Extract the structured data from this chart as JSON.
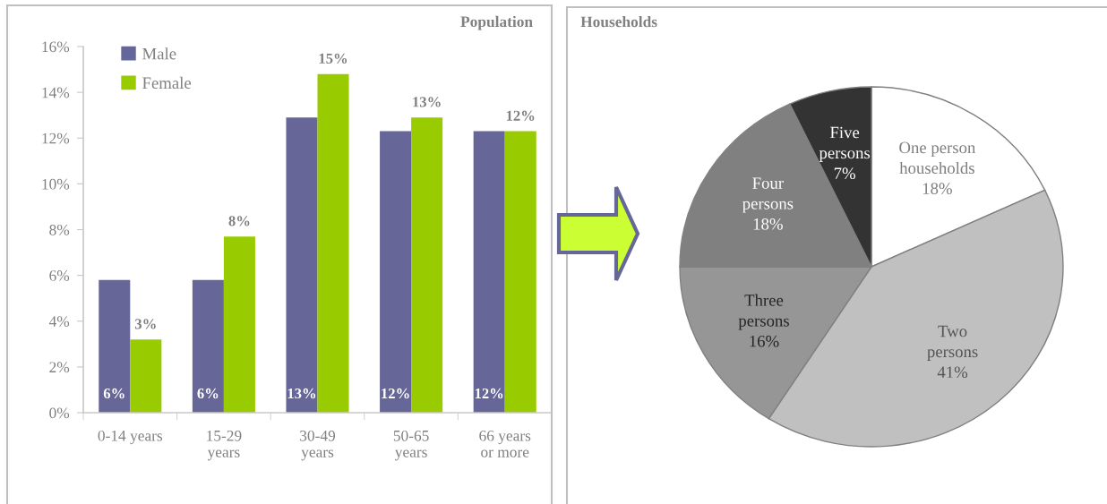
{
  "chart_data": [
    {
      "type": "bar",
      "title": "Population",
      "categories": [
        "0-14 years",
        "15-29\nyears",
        "30-49\nyears",
        "50-65\nyears",
        "66 years\nor more"
      ],
      "series": [
        {
          "name": "Male",
          "color": "#666699",
          "values": [
            5.8,
            5.8,
            12.9,
            12.3,
            12.3
          ],
          "value_labels": [
            "6%",
            "6%",
            "13%",
            "12%",
            "12%"
          ]
        },
        {
          "name": "Female",
          "color": "#99cc00",
          "values": [
            3.2,
            7.7,
            14.8,
            12.9,
            12.3
          ],
          "value_labels": [
            "3%",
            "8%",
            "15%",
            "13%",
            "12%"
          ]
        }
      ],
      "ylim": [
        0,
        16
      ],
      "yticks": [
        {
          "value": 0,
          "label": "0%"
        },
        {
          "value": 2,
          "label": "2%"
        },
        {
          "value": 4,
          "label": "4%"
        },
        {
          "value": 6,
          "label": "6%"
        },
        {
          "value": 8,
          "label": "8%"
        },
        {
          "value": 10,
          "label": "10%"
        },
        {
          "value": 12,
          "label": "12%"
        },
        {
          "value": 14,
          "label": "14%"
        },
        {
          "value": 16,
          "label": "16%"
        }
      ],
      "legend": "top left"
    },
    {
      "type": "pie",
      "title": "Households",
      "categories": [
        "One person\nhouseholds",
        "Two\npersons",
        "Three\npersons",
        "Four\npersons",
        "Five\npersons"
      ],
      "values": [
        18,
        41,
        16,
        18,
        7
      ],
      "colors": [
        "#ffffff",
        "#c0c0c0",
        "#969696",
        "#808080",
        "#333333"
      ],
      "value_labels": [
        "18%",
        "41%",
        "16%",
        "18%",
        "7%"
      ]
    }
  ]
}
